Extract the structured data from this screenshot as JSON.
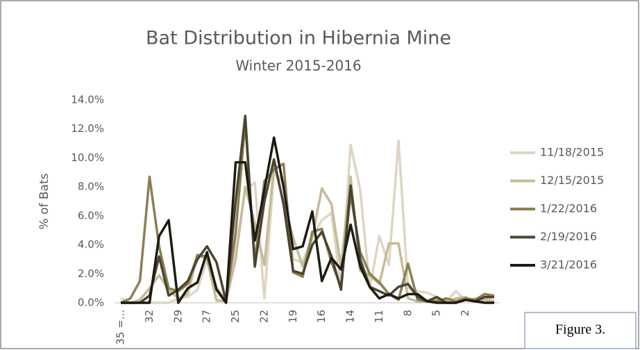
{
  "chart_data": {
    "type": "line",
    "title": "Bat Distribution in Hibernia Mine",
    "subtitle": "Winter 2015-2016",
    "y_label": "% of Bats",
    "annotation": "Figure 3.",
    "categories": [
      "35 =...",
      null,
      null,
      "32",
      null,
      null,
      "29",
      null,
      null,
      "27",
      null,
      null,
      "25",
      null,
      null,
      "22",
      null,
      null,
      "19",
      null,
      null,
      "16",
      null,
      null,
      "14",
      null,
      null,
      "11",
      null,
      null,
      "8",
      null,
      null,
      "5",
      null,
      null,
      "2",
      null,
      null,
      null
    ],
    "ylim": [
      0,
      14
    ],
    "yticks": [
      {
        "value": 0,
        "label": "0.0%"
      },
      {
        "value": 2,
        "label": "2.0%"
      },
      {
        "value": 4,
        "label": "4.0%"
      },
      {
        "value": 6,
        "label": "6.0%"
      },
      {
        "value": 8,
        "label": "8.0%"
      },
      {
        "value": 10,
        "label": "10.0%"
      },
      {
        "value": 12,
        "label": "12.0%"
      },
      {
        "value": 14,
        "label": "14.0%"
      }
    ],
    "grid": false,
    "legend": "right",
    "series": [
      {
        "name": "11/18/2015",
        "color": "#ddd6c3",
        "values": [
          0.3,
          0,
          0,
          0,
          0,
          0,
          0.3,
          0.4,
          0.9,
          3.0,
          0.1,
          0,
          3.5,
          7.8,
          8.3,
          0.3,
          9.0,
          8.3,
          3.0,
          2.8,
          4.6,
          5.7,
          6.2,
          1.0,
          10.9,
          7.8,
          1.0,
          4.6,
          2.6,
          11.2,
          1.0,
          0.8,
          0.7,
          0.4,
          0.1,
          0.8,
          0.2,
          0.3,
          0.4,
          0.1
        ]
      },
      {
        "name": "12/15/2015",
        "color": "#c6bb98",
        "values": [
          0,
          0,
          0.2,
          1.0,
          1.9,
          0.9,
          0.3,
          0.6,
          3.3,
          3.0,
          0.2,
          0.1,
          3.0,
          8.0,
          5.5,
          2.6,
          9.5,
          7.0,
          4.5,
          2.5,
          4.5,
          7.9,
          6.8,
          2.5,
          8.7,
          2.2,
          1.9,
          1.3,
          4.1,
          4.1,
          0.3,
          0.1,
          0.1,
          0.2,
          0.1,
          0.3,
          0.4,
          0.1,
          0.2,
          0.1
        ]
      },
      {
        "name": "1/22/2016",
        "color": "#8c7f55",
        "values": [
          0,
          0.3,
          1.5,
          8.7,
          3.9,
          1.0,
          0.8,
          1.3,
          3.3,
          3.2,
          1.0,
          0.1,
          4.8,
          12.5,
          2.8,
          8.4,
          9.2,
          9.6,
          2.1,
          1.8,
          4.9,
          5.1,
          2.8,
          1.1,
          7.5,
          3.5,
          2.0,
          1.4,
          0.6,
          0.2,
          2.7,
          0.2,
          0.1,
          0.1,
          0.3,
          0.1,
          0.3,
          0.2,
          0.6,
          0.5
        ]
      },
      {
        "name": "2/19/2016",
        "color": "#4b4431",
        "values": [
          0,
          0,
          0,
          0.5,
          3.2,
          0.5,
          0.9,
          1.5,
          3.0,
          3.9,
          2.8,
          0.1,
          7.0,
          12.9,
          2.5,
          7.0,
          9.9,
          6.8,
          2.2,
          2.0,
          4.0,
          4.9,
          3.2,
          0.9,
          8.1,
          3.0,
          1.1,
          0.8,
          0.5,
          1.1,
          1.3,
          0.4,
          0.1,
          0.4,
          0,
          0,
          0.2,
          0.1,
          0.4,
          0.4
        ]
      },
      {
        "name": "3/21/2016",
        "color": "#1e1b12",
        "values": [
          0,
          0,
          0,
          0,
          4.6,
          5.7,
          0,
          1.0,
          1.4,
          3.5,
          0.9,
          0,
          9.7,
          9.7,
          4.3,
          7.8,
          11.4,
          8.0,
          3.7,
          3.9,
          6.3,
          1.5,
          3.1,
          2.3,
          5.4,
          2.5,
          1.1,
          0.3,
          0.6,
          0.3,
          0.6,
          0.6,
          0.1,
          0,
          0,
          0,
          0.2,
          0.1,
          0,
          0
        ]
      }
    ]
  }
}
